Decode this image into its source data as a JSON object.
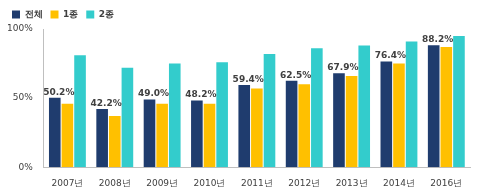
{
  "chart_data": {
    "type": "bar",
    "categories": [
      "2007년",
      "2008년",
      "2009년",
      "2010년",
      "2011년",
      "2012년",
      "2013년",
      "2014년",
      "2016년"
    ],
    "series": [
      {
        "name": "전체",
        "color": "#1f3c6e",
        "values": [
          50.2,
          42.2,
          49.0,
          48.2,
          59.4,
          62.5,
          67.9,
          76.4,
          88.2
        ],
        "value_labels": [
          "50.2%",
          "42.2%",
          "49.0%",
          "48.2%",
          "59.4%",
          "62.5%",
          "67.9%",
          "76.4%",
          "88.2%"
        ]
      },
      {
        "name": "1종",
        "color": "#ffc000",
        "values": [
          46,
          37,
          46,
          46,
          57,
          60,
          66,
          75,
          87
        ]
      },
      {
        "name": "2종",
        "color": "#33cccc",
        "values": [
          81,
          72,
          75,
          76,
          82,
          86,
          88,
          91,
          95
        ]
      }
    ],
    "ylim": [
      0,
      100
    ],
    "yticks": [
      {
        "value": 0,
        "label": "0%"
      },
      {
        "value": 50,
        "label": "50%"
      },
      {
        "value": 100,
        "label": "100%"
      }
    ],
    "grid": false,
    "legend": "top-left",
    "data_labels": true
  }
}
